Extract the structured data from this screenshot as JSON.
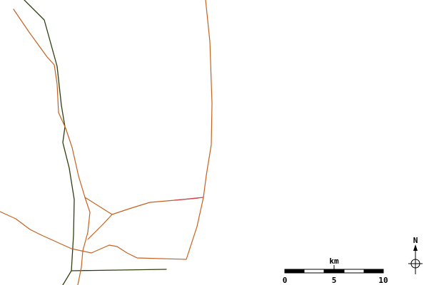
{
  "map": {
    "colors": {
      "background": "#ffffff",
      "road_primary": "#c5621f",
      "road_secondary": "#2f3f0f",
      "road_highlight": "#d0404a",
      "scale_dark": "#000000",
      "scale_light": "#ffffff"
    },
    "scale_bar": {
      "unit_label": "km",
      "tick_labels": [
        "0",
        "5",
        "10"
      ]
    },
    "compass": {
      "north_label": "N",
      "icon": "north-arrow-icon"
    }
  }
}
